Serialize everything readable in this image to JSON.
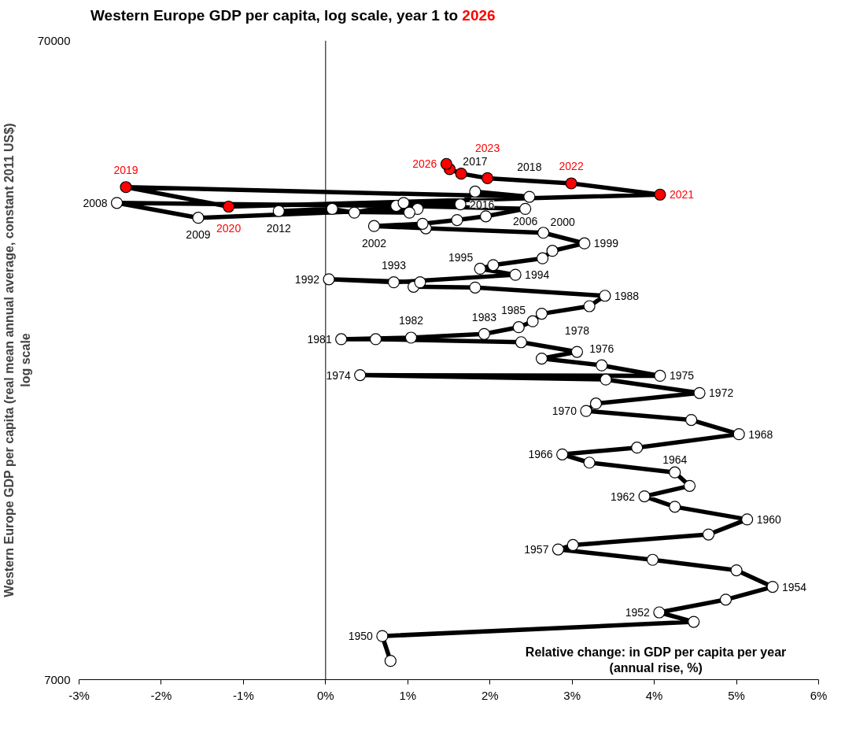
{
  "chart_data": {
    "type": "line",
    "title": "Western Europe GDP per capita, log scale, year 1 to 2026",
    "xlabel": "Relative change: in GDP per capita per year\n(annual rise, %)",
    "ylabel": "Western Europe GDP per capita (real mean annual average, constant 2011 US$)\nlog scale",
    "xlim": [
      -3,
      6
    ],
    "xticks": [
      {
        "value": -3,
        "label": "-3%"
      },
      {
        "value": -2,
        "label": "-2%"
      },
      {
        "value": -1,
        "label": "-1%"
      },
      {
        "value": 0,
        "label": "0%"
      },
      {
        "value": 1,
        "label": "1%"
      },
      {
        "value": 2,
        "label": "2%"
      },
      {
        "value": 3,
        "label": "3%"
      },
      {
        "value": 4,
        "label": "4%"
      },
      {
        "value": 5,
        "label": "5%"
      },
      {
        "value": 6,
        "label": "6%"
      }
    ],
    "ylim": [
      7000,
      70000
    ],
    "yticks": [
      7000,
      70000
    ],
    "log": "y",
    "ref_lines": [
      {
        "axis": "x",
        "value": 0,
        "label": null,
        "color": "#000000"
      }
    ],
    "annotations": [
      {
        "text": "1950",
        "x": 0.69,
        "y": 8190
      },
      {
        "text": "1952",
        "x": 4.06,
        "y": 8920
      },
      {
        "text": "1954",
        "x": 5.44,
        "y": 9780
      },
      {
        "text": "1957",
        "x": 2.83,
        "y": 11190
      },
      {
        "text": "1960",
        "x": 5.13,
        "y": 12470
      },
      {
        "text": "1962",
        "x": 3.88,
        "y": 13550
      },
      {
        "text": "1964",
        "x": 4.25,
        "y": 14770
      },
      {
        "text": "1966",
        "x": 2.88,
        "y": 15760
      },
      {
        "text": "1968",
        "x": 5.03,
        "y": 16950
      },
      {
        "text": "1970",
        "x": 3.17,
        "y": 18430
      },
      {
        "text": "1972",
        "x": 4.55,
        "y": 19660
      },
      {
        "text": "1974",
        "x": 0.42,
        "y": 20970
      },
      {
        "text": "1975",
        "x": 4.07,
        "y": 20920
      },
      {
        "text": "1976",
        "x": 3.36,
        "y": 21720
      },
      {
        "text": "1978",
        "x": 3.06,
        "y": 22800
      },
      {
        "text": "1981",
        "x": 0.19,
        "y": 23870
      },
      {
        "text": "1982",
        "x": 1.04,
        "y": 24000
      },
      {
        "text": "1983",
        "x": 1.93,
        "y": 24320
      },
      {
        "text": "1985",
        "x": 2.52,
        "y": 25460
      },
      {
        "text": "1988",
        "x": 3.4,
        "y": 27910
      },
      {
        "text": "1992",
        "x": 0.04,
        "y": 29620
      },
      {
        "text": "1993",
        "x": 0.83,
        "y": 29300
      },
      {
        "text": "1994",
        "x": 2.31,
        "y": 30100
      },
      {
        "text": "1995",
        "x": 1.88,
        "y": 30760
      },
      {
        "text": "1999",
        "x": 3.15,
        "y": 33710
      },
      {
        "text": "2000",
        "x": 2.65,
        "y": 35020
      },
      {
        "text": "2002",
        "x": 0.59,
        "y": 35880
      },
      {
        "text": "2006",
        "x": 2.43,
        "y": 38170
      },
      {
        "text": "2008",
        "x": -2.54,
        "y": 39000
      },
      {
        "text": "2009",
        "x": -1.55,
        "y": 36960
      },
      {
        "text": "2012",
        "x": -0.57,
        "y": 37870
      },
      {
        "text": "2016",
        "x": 1.64,
        "y": 38800
      },
      {
        "text": "2017",
        "x": 1.82,
        "y": 40620
      },
      {
        "text": "2018",
        "x": 2.48,
        "y": 39860
      },
      {
        "text": "2019",
        "x": -2.43,
        "y": 41280
      },
      {
        "text": "2020",
        "x": -1.18,
        "y": 38480
      },
      {
        "text": "2021",
        "x": 4.07,
        "y": 40180
      },
      {
        "text": "2022",
        "x": 2.99,
        "y": 41840
      },
      {
        "text": "2023",
        "x": 1.97,
        "y": 42630
      },
      {
        "text": "2026",
        "x": 1.47,
        "y": 44880
      }
    ],
    "series": [
      {
        "type": "line",
        "color": "#000000",
        "marker": "circle",
        "line_style": "solid",
        "colors": [
          "#ffffff",
          "#ffffff",
          "#ffffff",
          "#ffffff",
          "#ffffff",
          "#ffffff",
          "#ffffff",
          "#ffffff",
          "#ffffff",
          "#ffffff",
          "#ffffff",
          "#ffffff",
          "#ffffff",
          "#ffffff",
          "#ffffff",
          "#ffffff",
          "#ffffff",
          "#ffffff",
          "#ffffff",
          "#ffffff",
          "#ffffff",
          "#ffffff",
          "#ffffff",
          "#ffffff",
          "#ffffff",
          "#ffffff",
          "#ffffff",
          "#ffffff",
          "#ffffff",
          "#ffffff",
          "#ffffff",
          "#ffffff",
          "#ffffff",
          "#ffffff",
          "#ffffff",
          "#ffffff",
          "#ffffff",
          "#ffffff",
          "#ffffff",
          "#ffffff",
          "#ffffff",
          "#ffffff",
          "#ffffff",
          "#ffffff",
          "#ffffff",
          "#ffffff",
          "#ffffff",
          "#ffffff",
          "#ffffff",
          "#ffffff",
          "#ffffff",
          "#ffffff",
          "#ffffff",
          "#ffffff",
          "#ffffff",
          "#ffffff",
          "#ffffff",
          "#ffffff",
          "#ffffff",
          "#ffffff",
          "#ffffff",
          "#ffffff",
          "#ffffff",
          "#ffffff",
          "#ffffff",
          "#ffffff",
          "#ffffff",
          "#ffffff",
          "#ffffff",
          "#ffffff",
          "#ff0000",
          "#ff0000",
          "#ff0000",
          "#ff0000",
          "#ff0000",
          "#ff0000",
          "#ff0000",
          "#ff0000"
        ],
        "x": [
          0.79,
          0.69,
          4.48,
          4.06,
          4.87,
          5.44,
          5.0,
          3.98,
          2.83,
          3.01,
          4.66,
          5.13,
          4.25,
          3.88,
          4.43,
          4.25,
          3.21,
          2.88,
          3.79,
          5.03,
          4.45,
          3.17,
          3.29,
          4.55,
          3.41,
          0.42,
          4.07,
          3.36,
          2.63,
          3.06,
          2.38,
          0.61,
          0.19,
          1.04,
          1.93,
          2.35,
          2.52,
          2.63,
          3.21,
          3.4,
          1.82,
          1.07,
          1.15,
          0.04,
          0.83,
          2.31,
          1.88,
          2.04,
          2.64,
          2.76,
          3.15,
          2.65,
          1.22,
          0.59,
          1.18,
          1.6,
          1.95,
          2.43,
          0.86,
          -2.54,
          -1.55,
          1.12,
          1.02,
          -0.57,
          0.08,
          0.35,
          0.95,
          1.64,
          1.82,
          2.48,
          -2.43,
          -1.18,
          4.07,
          2.99,
          1.97,
          1.65,
          1.51,
          1.47
        ],
        "values": [
          7490,
          8190,
          8620,
          8920,
          9340,
          9780,
          10380,
          10780,
          11190,
          11370,
          11810,
          12470,
          13050,
          13550,
          14070,
          14770,
          15300,
          15760,
          16150,
          16950,
          17840,
          18430,
          18930,
          19660,
          20640,
          20970,
          20920,
          21720,
          22260,
          22800,
          23610,
          23870,
          23870,
          24000,
          24320,
          24920,
          25460,
          26160,
          26880,
          27910,
          28750,
          28830,
          29300,
          29620,
          29300,
          30100,
          30760,
          31170,
          31940,
          32810,
          33710,
          35020,
          35590,
          35880,
          36170,
          36660,
          37160,
          38170,
          38590,
          39000,
          36960,
          38170,
          37660,
          37870,
          38170,
          37660,
          39000,
          38800,
          40620,
          39860,
          41280,
          38480,
          40180,
          41840,
          42630,
          43330,
          44040,
          44880
        ]
      }
    ]
  }
}
